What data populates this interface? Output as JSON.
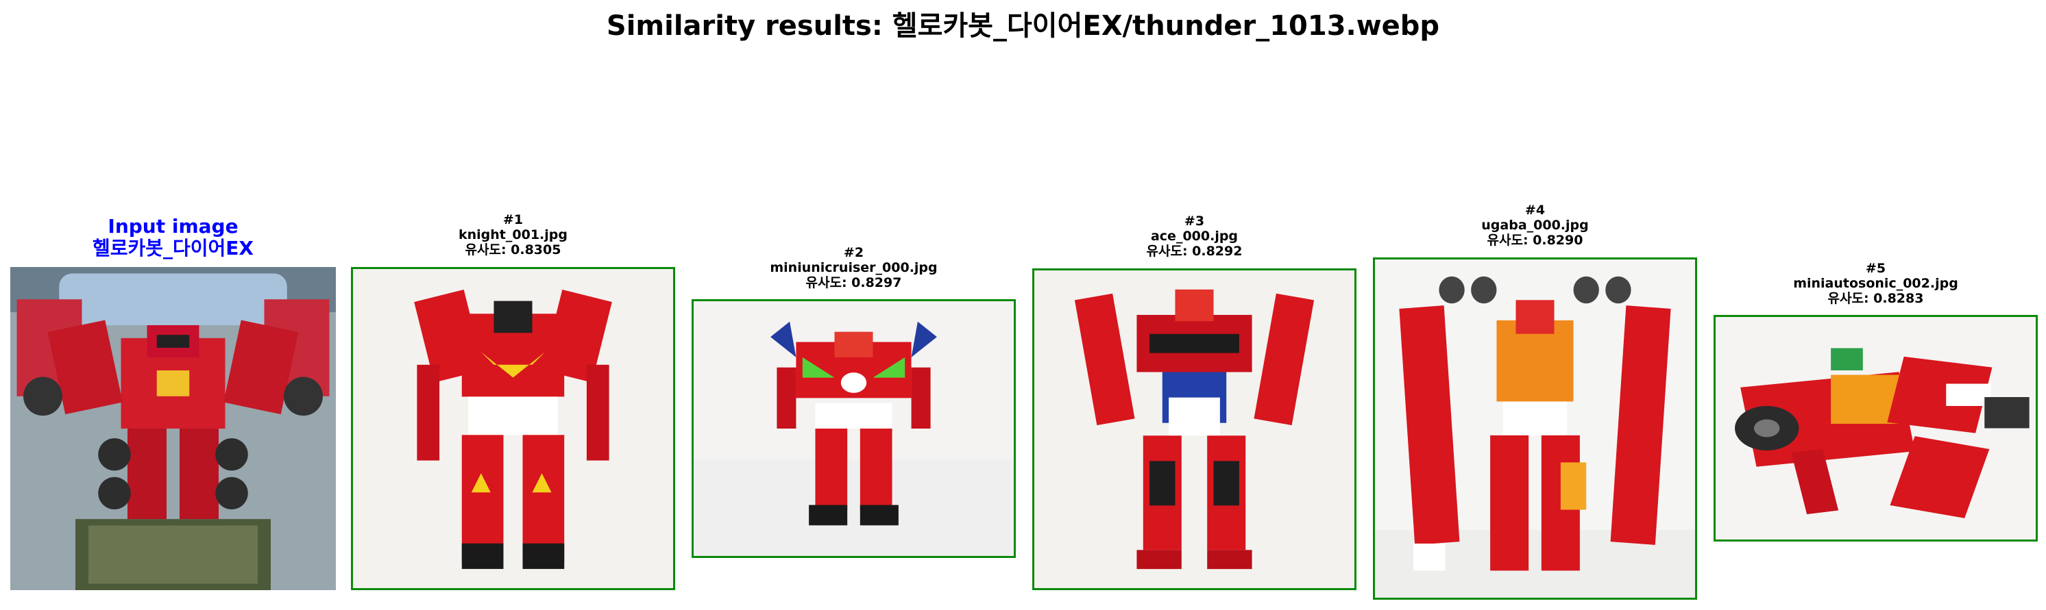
{
  "title": "Similarity results: 헬로카봇_다이어EX/thunder_1013.webp",
  "accent_colors": {
    "query_label": "#0000ff",
    "match_border": "#0a8a0a",
    "robot_red": "#d8161e"
  },
  "query": {
    "heading": "Input image",
    "class_name": "헬로카봇_다이어EX"
  },
  "results": [
    {
      "rank": "#1",
      "filename": "knight_001.jpg",
      "score": "유사도: 0.8305"
    },
    {
      "rank": "#2",
      "filename": "miniunicruiser_000.jpg",
      "score": "유사도: 0.8297"
    },
    {
      "rank": "#3",
      "filename": "ace_000.jpg",
      "score": "유사도: 0.8292"
    },
    {
      "rank": "#4",
      "filename": "ugaba_000.jpg",
      "score": "유사도: 0.8290"
    },
    {
      "rank": "#5",
      "filename": "miniautosonic_002.jpg",
      "score": "유사도: 0.8283"
    }
  ]
}
